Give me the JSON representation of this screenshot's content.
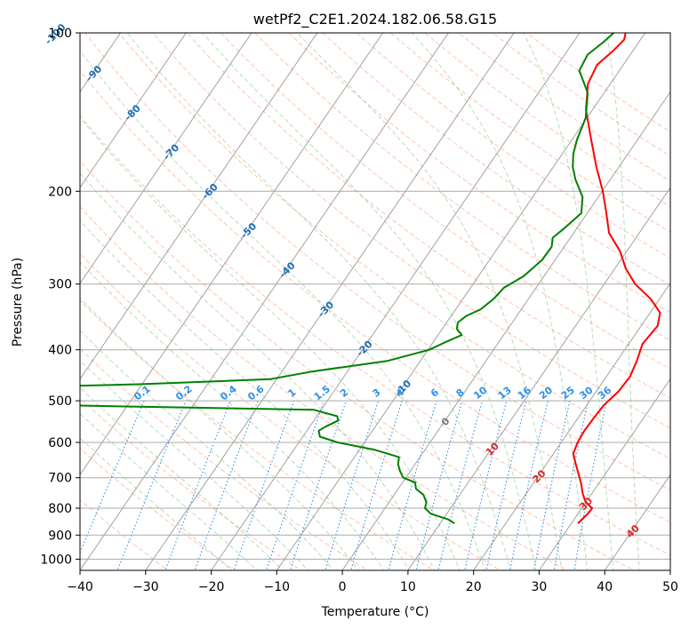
{
  "chart_data": {
    "type": "line",
    "title": "wetPf2_C2E1.2024.182.06.58.G15",
    "xlabel": "Temperature (°C)",
    "ylabel": "Pressure (hPa)",
    "xlim": [
      -40,
      50
    ],
    "ylim": [
      1050,
      100
    ],
    "y_scale": "log",
    "x_ticks": [
      -40,
      -30,
      -20,
      -10,
      0,
      10,
      20,
      30,
      40,
      50
    ],
    "x_tick_labels": [
      "−40",
      "−30",
      "−20",
      "−10",
      "0",
      "10",
      "20",
      "30",
      "40",
      "50"
    ],
    "y_ticks": [
      100,
      200,
      300,
      400,
      500,
      600,
      700,
      800,
      900,
      1000
    ],
    "y_tick_labels": [
      "100",
      "200",
      "300",
      "400",
      "500",
      "600",
      "700",
      "800",
      "900",
      "1000"
    ],
    "grid": true,
    "series": [
      {
        "kind": "temperature",
        "color": "#ff0000",
        "points": [
          [
            855,
            31.0
          ],
          [
            820,
            31.5
          ],
          [
            800,
            31.6
          ],
          [
            780,
            30.0
          ],
          [
            750,
            28.6
          ],
          [
            720,
            27.4
          ],
          [
            690,
            26.0
          ],
          [
            660,
            24.5
          ],
          [
            630,
            23.0
          ],
          [
            600,
            22.5
          ],
          [
            570,
            22.3
          ],
          [
            540,
            22.4
          ],
          [
            510,
            22.6
          ],
          [
            480,
            23.4
          ],
          [
            450,
            23.6
          ],
          [
            420,
            23.0
          ],
          [
            390,
            22.1
          ],
          [
            360,
            22.5
          ],
          [
            340,
            21.5
          ],
          [
            320,
            18.6
          ],
          [
            300,
            14.7
          ],
          [
            280,
            11.6
          ],
          [
            260,
            9.0
          ],
          [
            240,
            5.4
          ],
          [
            220,
            2.9
          ],
          [
            200,
            0.1
          ],
          [
            180,
            -3.4
          ],
          [
            160,
            -7.0
          ],
          [
            140,
            -11.0
          ],
          [
            125,
            -13.4
          ],
          [
            115,
            -14.0
          ],
          [
            108,
            -13.0
          ],
          [
            103,
            -12.5
          ],
          [
            100,
            -13.0
          ]
        ]
      },
      {
        "kind": "dewpoint",
        "color": "#008000",
        "points": [
          [
            855,
            12.2
          ],
          [
            840,
            10.8
          ],
          [
            820,
            7.6
          ],
          [
            800,
            6.1
          ],
          [
            780,
            5.7
          ],
          [
            755,
            4.5
          ],
          [
            735,
            2.7
          ],
          [
            715,
            1.9
          ],
          [
            700,
            -0.4
          ],
          [
            680,
            -1.6
          ],
          [
            660,
            -2.6
          ],
          [
            640,
            -3.2
          ],
          [
            620,
            -7.6
          ],
          [
            600,
            -14.1
          ],
          [
            585,
            -17.4
          ],
          [
            570,
            -18.2
          ],
          [
            560,
            -17.6
          ],
          [
            545,
            -16.3
          ],
          [
            535,
            -16.9
          ],
          [
            520,
            -21.2
          ],
          [
            510,
            -60.0
          ],
          [
            490,
            -65.0
          ],
          [
            470,
            -65.0
          ],
          [
            465,
            -50.0
          ],
          [
            455,
            -31.0
          ],
          [
            440,
            -25.4
          ],
          [
            420,
            -15.0
          ],
          [
            400,
            -9.8
          ],
          [
            385,
            -7.9
          ],
          [
            375,
            -6.4
          ],
          [
            365,
            -7.8
          ],
          [
            355,
            -8.3
          ],
          [
            345,
            -7.7
          ],
          [
            335,
            -6.2
          ],
          [
            320,
            -5.3
          ],
          [
            305,
            -4.9
          ],
          [
            290,
            -3.1
          ],
          [
            270,
            -2.0
          ],
          [
            255,
            -1.9
          ],
          [
            245,
            -2.7
          ],
          [
            235,
            -1.9
          ],
          [
            220,
            -0.9
          ],
          [
            205,
            -2.4
          ],
          [
            190,
            -5.3
          ],
          [
            180,
            -7.0
          ],
          [
            170,
            -8.3
          ],
          [
            160,
            -9.2
          ],
          [
            145,
            -10.2
          ],
          [
            130,
            -12.5
          ],
          [
            118,
            -16.1
          ],
          [
            110,
            -16.5
          ],
          [
            104,
            -15.4
          ],
          [
            100,
            -14.8
          ]
        ]
      }
    ],
    "isotherm_labels": [
      "-100",
      "-90",
      "-80",
      "-70",
      "-60",
      "-50",
      "-40",
      "-30",
      "-20",
      "-10",
      "0",
      "10",
      "20",
      "30",
      "40"
    ],
    "mixing_ratio_labels": [
      "0.1",
      "0.2",
      "0.4",
      "0.6",
      "1",
      "1.5",
      "2",
      "3",
      "4",
      "6",
      "8",
      "10",
      "13",
      "16",
      "20",
      "25",
      "30",
      "36"
    ]
  }
}
